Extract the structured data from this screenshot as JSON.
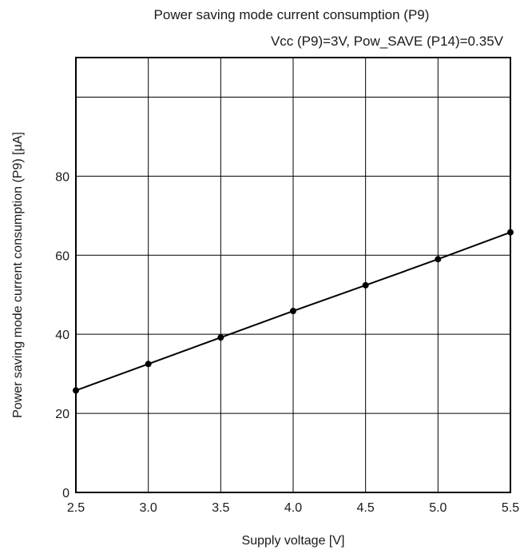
{
  "chart_data": {
    "type": "line",
    "title": "Power saving mode current consumption (P9)",
    "subtitle": "Vcc (P9)=3V, Pow_SAVE (P14)=0.35V",
    "xlabel": "Supply voltage [V]",
    "ylabel": "Power saving mode current consumption (P9) [µA]",
    "xlim": [
      2.5,
      5.5
    ],
    "ylim": [
      0,
      110
    ],
    "x_ticks": [
      2.5,
      3.0,
      3.5,
      4.0,
      4.5,
      5.0,
      5.5
    ],
    "x_tick_labels": [
      "2.5",
      "3.0",
      "3.5",
      "4.0",
      "4.5",
      "5.0",
      "5.5"
    ],
    "y_ticks": [
      0,
      20,
      40,
      60,
      80
    ],
    "y_tick_labels": [
      "0",
      "20",
      "40",
      "60",
      "80"
    ],
    "y_grid": [
      0,
      20,
      40,
      60,
      80,
      100
    ],
    "grid": true,
    "series": [
      {
        "x": [
          2.5,
          3.0,
          3.5,
          4.0,
          4.5,
          5.0,
          5.5
        ],
        "values": [
          25.8,
          32.5,
          39.2,
          45.9,
          52.4,
          59.0,
          65.8
        ]
      }
    ]
  }
}
